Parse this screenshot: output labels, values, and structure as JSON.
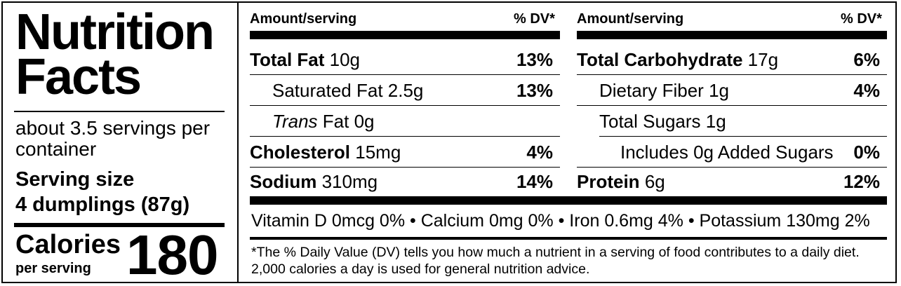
{
  "title": "Nutrition Facts",
  "servings_per_container": "about 3.5 servings per container",
  "serving_size_label": "Serving size",
  "serving_size_value": "4 dumplings (87g)",
  "calories_label": "Calories",
  "calories_sub": "per serving",
  "calories_value": "180",
  "headers": {
    "amount": "Amount/serving",
    "dv": "% DV*"
  },
  "left_nutrients": [
    {
      "name": "Total Fat",
      "amount": "10g",
      "dv": "13%"
    },
    {
      "name": "Saturated Fat",
      "amount": "2.5g",
      "dv": "13%"
    },
    {
      "name": "Trans",
      "name_suffix": "Fat",
      "amount": "0g",
      "dv": ""
    },
    {
      "name": "Cholesterol",
      "amount": "15mg",
      "dv": "4%"
    },
    {
      "name": "Sodium",
      "amount": "310mg",
      "dv": "14%"
    }
  ],
  "right_nutrients": [
    {
      "name": "Total Carbohydrate",
      "amount": "17g",
      "dv": "6%"
    },
    {
      "name": "Dietary Fiber",
      "amount": "1g",
      "dv": "4%"
    },
    {
      "name": "Total Sugars",
      "amount": "1g",
      "dv": ""
    },
    {
      "name": "Includes 0g Added Sugars",
      "amount": "",
      "dv": "0%"
    },
    {
      "name": "Protein",
      "amount": "6g",
      "dv": "12%"
    }
  ],
  "vitamins_line": "Vitamin D 0mcg 0% • Calcium 0mg 0% • Iron 0.6mg 4% •  Potassium 130mg 2%",
  "footnote": "*The % Daily Value (DV) tells you how much a nutrient in a serving of food contributes to a daily diet. 2,000 calories a day is used for general nutrition advice."
}
